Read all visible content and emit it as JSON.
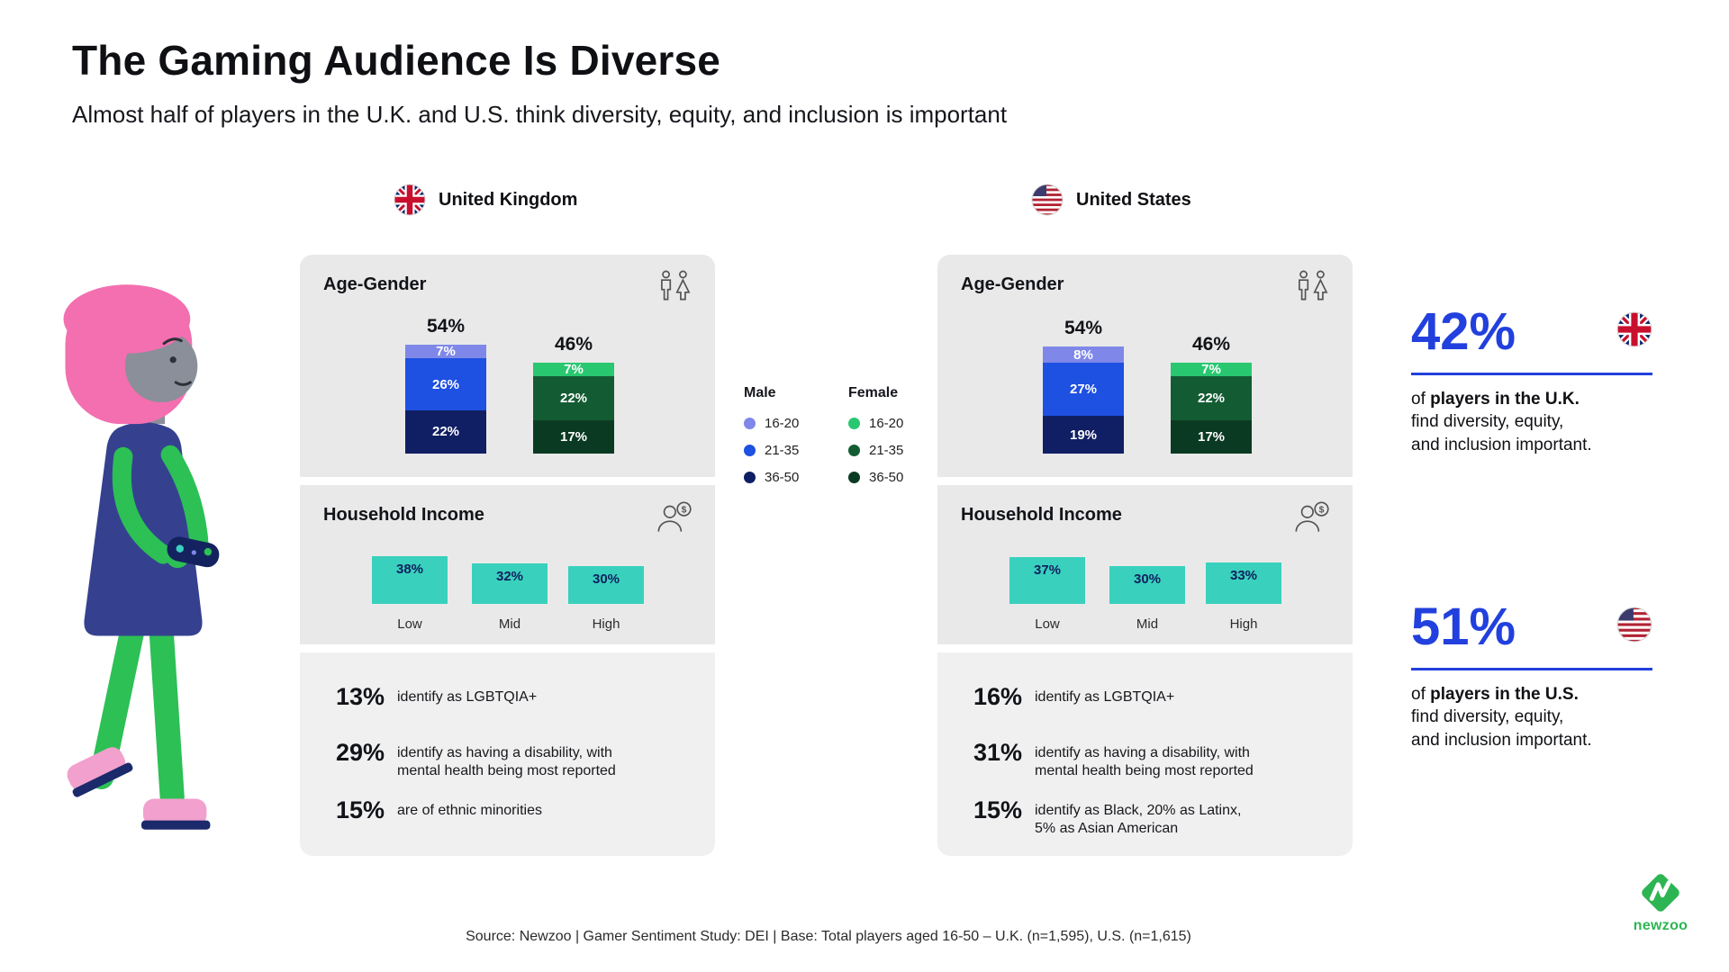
{
  "header": {
    "title": "The Gaming Audience Is Diverse",
    "subtitle": "Almost half of players in the U.K. and U.S. think diversity, equity, and inclusion is important"
  },
  "colors": {
    "male_16_20": "#7f88e8",
    "male_21_35": "#1e50e2",
    "male_36_50": "#101f63",
    "female_16_20": "#29c770",
    "female_21_35": "#135c33",
    "female_36_50": "#0b3a23",
    "income_bar": "#39d1bd",
    "accent_blue": "#2240dd",
    "newzoo_green": "#2eb553"
  },
  "legend": {
    "male_label": "Male",
    "female_label": "Female",
    "male_items": [
      {
        "label": "16-20",
        "color": "#7f88e8"
      },
      {
        "label": "21-35",
        "color": "#1e50e2"
      },
      {
        "label": "36-50",
        "color": "#101f63"
      }
    ],
    "female_items": [
      {
        "label": "16-20",
        "color": "#29c770"
      },
      {
        "label": "21-35",
        "color": "#135c33"
      },
      {
        "label": "36-50",
        "color": "#0b3a23"
      }
    ]
  },
  "panels": [
    {
      "country": "United Kingdom",
      "age_gender": {
        "section_title": "Age-Gender",
        "male_total": "54%",
        "female_total": "46%",
        "male_segments": [
          {
            "label": "7%",
            "value": 7,
            "color": "#7f88e8"
          },
          {
            "label": "26%",
            "value": 26,
            "color": "#1e50e2"
          },
          {
            "label": "22%",
            "value": 22,
            "color": "#101f63"
          }
        ],
        "female_segments": [
          {
            "label": "7%",
            "value": 7,
            "color": "#29c770"
          },
          {
            "label": "22%",
            "value": 22,
            "color": "#135c33"
          },
          {
            "label": "17%",
            "value": 17,
            "color": "#0b3a23"
          }
        ]
      },
      "income": {
        "section_title": "Household Income",
        "bars": [
          {
            "label": "Low",
            "value": 38,
            "display": "38%"
          },
          {
            "label": "Mid",
            "value": 32,
            "display": "32%"
          },
          {
            "label": "High",
            "value": 30,
            "display": "30%"
          }
        ]
      },
      "stats": [
        {
          "value": "13%",
          "text": "identify as LGBTQIA+"
        },
        {
          "value": "29%",
          "text": "identify as having a disability, with\nmental health being most reported"
        },
        {
          "value": "15%",
          "text": "are of ethnic minorities"
        }
      ]
    },
    {
      "country": "United States",
      "age_gender": {
        "section_title": "Age-Gender",
        "male_total": "54%",
        "female_total": "46%",
        "male_segments": [
          {
            "label": "8%",
            "value": 8,
            "color": "#7f88e8"
          },
          {
            "label": "27%",
            "value": 27,
            "color": "#1e50e2"
          },
          {
            "label": "19%",
            "value": 19,
            "color": "#101f63"
          }
        ],
        "female_segments": [
          {
            "label": "7%",
            "value": 7,
            "color": "#29c770"
          },
          {
            "label": "22%",
            "value": 22,
            "color": "#135c33"
          },
          {
            "label": "17%",
            "value": 17,
            "color": "#0b3a23"
          }
        ]
      },
      "income": {
        "section_title": "Household Income",
        "bars": [
          {
            "label": "Low",
            "value": 37,
            "display": "37%"
          },
          {
            "label": "Mid",
            "value": 30,
            "display": "30%"
          },
          {
            "label": "High",
            "value": 33,
            "display": "33%"
          }
        ]
      },
      "stats": [
        {
          "value": "16%",
          "text": "identify as LGBTQIA+"
        },
        {
          "value": "31%",
          "text": "identify as having a disability, with\nmental health being most reported"
        },
        {
          "value": "15%",
          "text": "identify as Black, 20% as Latinx,\n5% as Asian American"
        }
      ]
    }
  ],
  "callouts": [
    {
      "value": "42%",
      "prefix": "of ",
      "bold": "players in the U.K.",
      "rest": "\nfind diversity, equity,\nand inclusion important."
    },
    {
      "value": "51%",
      "prefix": "of ",
      "bold": "players in the U.S.",
      "rest": "\nfind diversity, equity,\nand inclusion important."
    }
  ],
  "footer": {
    "source": "Source: Newzoo | Gamer Sentiment Study: DEI | Base: Total players aged 16-50 – U.K. (n=1,595), U.S. (n=1,615)"
  },
  "logo": {
    "text": "newzoo"
  },
  "chart_data": [
    {
      "type": "bar",
      "subtype": "stacked-column",
      "title": "Age-Gender — United Kingdom",
      "categories": [
        "Male",
        "Female"
      ],
      "series": [
        {
          "name": "16-20",
          "values": [
            7,
            7
          ]
        },
        {
          "name": "21-35",
          "values": [
            26,
            22
          ]
        },
        {
          "name": "36-50",
          "values": [
            22,
            17
          ]
        }
      ],
      "category_totals": [
        "54%",
        "46%"
      ],
      "unit": "%",
      "legend_position": "right-of-chart"
    },
    {
      "type": "bar",
      "title": "Household Income — United Kingdom",
      "categories": [
        "Low",
        "Mid",
        "High"
      ],
      "values": [
        38,
        32,
        30
      ],
      "unit": "%"
    },
    {
      "type": "bar",
      "subtype": "stacked-column",
      "title": "Age-Gender — United States",
      "categories": [
        "Male",
        "Female"
      ],
      "series": [
        {
          "name": "16-20",
          "values": [
            8,
            7
          ]
        },
        {
          "name": "21-35",
          "values": [
            27,
            22
          ]
        },
        {
          "name": "36-50",
          "values": [
            19,
            17
          ]
        }
      ],
      "category_totals": [
        "54%",
        "46%"
      ],
      "unit": "%",
      "legend_position": "left-of-chart"
    },
    {
      "type": "bar",
      "title": "Household Income — United States",
      "categories": [
        "Low",
        "Mid",
        "High"
      ],
      "values": [
        37,
        30,
        33
      ],
      "unit": "%"
    }
  ]
}
